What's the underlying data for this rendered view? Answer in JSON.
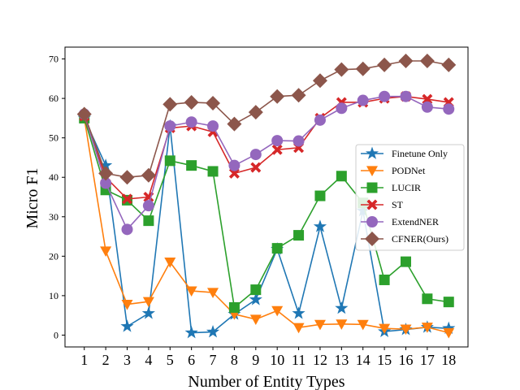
{
  "chart_data": {
    "type": "line",
    "title": "",
    "xlabel": "Number of Entity Types",
    "ylabel": "Micro F1",
    "x": [
      1,
      2,
      3,
      4,
      5,
      6,
      7,
      8,
      9,
      10,
      11,
      12,
      13,
      14,
      15,
      16,
      17,
      18
    ],
    "xticks": [
      "1",
      "2",
      "3",
      "4",
      "5",
      "6",
      "7",
      "8",
      "9",
      "10",
      "11",
      "12",
      "13",
      "14",
      "15",
      "16",
      "17",
      "18"
    ],
    "xlim": [
      0.1,
      18.9
    ],
    "ylim": [
      -3,
      73
    ],
    "yticks": [
      "0",
      "10",
      "20",
      "30",
      "40",
      "50",
      "60",
      "70"
    ],
    "legend_position": "right",
    "grid": false,
    "series": [
      {
        "name": "Finetune Only",
        "color": "#1f77b4",
        "marker": "star",
        "values": [
          55.0,
          43.0,
          2.2,
          5.5,
          53.0,
          0.6,
          0.8,
          5.3,
          9.0,
          21.8,
          5.5,
          27.5,
          6.8,
          31.5,
          0.9,
          1.4,
          2.0,
          1.7
        ]
      },
      {
        "name": "PODNet",
        "color": "#ff7f0e",
        "marker": "triangle-down",
        "values": [
          55.0,
          21.3,
          7.8,
          8.5,
          18.5,
          11.2,
          10.8,
          5.3,
          4.0,
          6.2,
          1.9,
          2.7,
          2.8,
          2.7,
          1.7,
          1.5,
          2.0,
          0.6
        ]
      },
      {
        "name": "LUCIR",
        "color": "#2ca02c",
        "marker": "square",
        "values": [
          55.0,
          36.8,
          34.2,
          29.0,
          44.2,
          43.0,
          41.5,
          7.0,
          11.5,
          22.0,
          25.3,
          35.3,
          40.3,
          33.5,
          14.0,
          18.6,
          9.2,
          8.4
        ]
      },
      {
        "name": "ST",
        "color": "#d62728",
        "marker": "x",
        "values": [
          55.5,
          40.0,
          34.5,
          35.0,
          52.5,
          53.0,
          51.5,
          41.0,
          42.5,
          47.0,
          47.5,
          55.0,
          59.0,
          59.0,
          60.0,
          60.5,
          59.8,
          59.0
        ]
      },
      {
        "name": "ExtendNER",
        "color": "#9467bd",
        "marker": "circle",
        "values": [
          56.0,
          38.5,
          26.8,
          32.8,
          53.0,
          54.0,
          53.0,
          43.0,
          45.8,
          49.3,
          49.2,
          54.5,
          57.5,
          59.5,
          60.5,
          60.5,
          57.8,
          57.3
        ]
      },
      {
        "name": "CFNER(Ours)",
        "color": "#8c564b",
        "marker": "diamond",
        "values": [
          56.0,
          41.0,
          40.0,
          40.5,
          58.5,
          59.0,
          58.8,
          53.5,
          56.5,
          60.5,
          60.8,
          64.5,
          67.3,
          67.5,
          68.5,
          69.5,
          69.5,
          68.5
        ]
      }
    ]
  }
}
